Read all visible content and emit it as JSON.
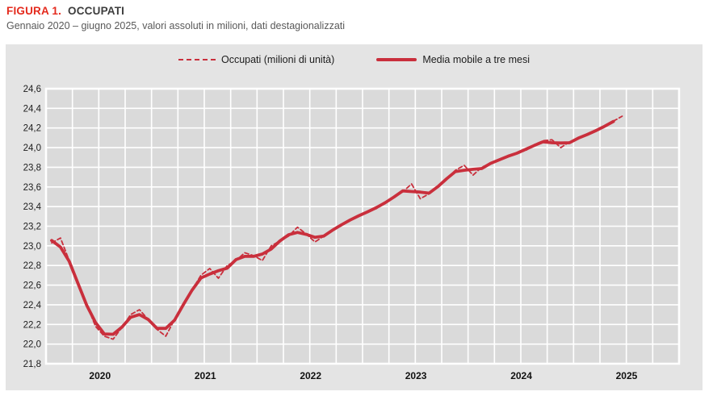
{
  "figure": {
    "label": "FIGURA 1.",
    "title": "OCCUPATI",
    "subtitle": "Gennaio 2020 – giugno 2025, valori assoluti in milioni, dati destagionalizzati"
  },
  "legend": {
    "series1": "Occupati (milioni di unità)",
    "series2": "Media mobile a tre mesi"
  },
  "colors": {
    "series_red": "#c92f3c",
    "title_red": "#e42a1d",
    "panel_bg": "#e4e4e4",
    "plot_bg": "#dadada",
    "grid": "#ffffff",
    "tick_text": "#1c1c1c"
  },
  "chart_data": {
    "type": "line",
    "title": "FIGURA 1. OCCUPATI",
    "subtitle": "Gennaio 2020 – giugno 2025, valori assoluti in milioni, dati destagionalizzati",
    "x_start_month": "2020-01",
    "x_end_month": "2025-06",
    "x_axis_months_span": 72,
    "x_tick_labels": [
      "2020",
      "2021",
      "2022",
      "2023",
      "2024",
      "2025"
    ],
    "ylim": [
      21.8,
      24.6
    ],
    "y_tick_step": 0.2,
    "y_tick_labels": [
      "24,6",
      "24,4",
      "24,2",
      "24,0",
      "23,8",
      "23,6",
      "23,4",
      "23,2",
      "23,0",
      "22,8",
      "22,6",
      "22,4",
      "22,2",
      "22,0",
      "21,8"
    ],
    "grid": true,
    "legend_position": "top-center",
    "series": [
      {
        "name": "Occupati (milioni di unità)",
        "style": "dashed",
        "unit": "milioni",
        "values": [
          23.03,
          23.08,
          22.85,
          22.6,
          22.4,
          22.18,
          22.08,
          22.05,
          22.17,
          22.3,
          22.35,
          22.25,
          22.15,
          22.08,
          22.25,
          22.4,
          22.55,
          22.7,
          22.77,
          22.67,
          22.8,
          22.85,
          22.93,
          22.9,
          22.85,
          23.0,
          23.05,
          23.1,
          23.19,
          23.12,
          23.04,
          23.1,
          23.16,
          23.22,
          23.26,
          23.31,
          23.35,
          23.38,
          23.44,
          23.5,
          23.55,
          23.63,
          23.48,
          23.53,
          23.6,
          23.68,
          23.77,
          23.82,
          23.72,
          23.8,
          23.84,
          23.88,
          23.91,
          23.95,
          23.97,
          24.03,
          24.07,
          24.08,
          24.0,
          24.06,
          24.09,
          24.14,
          24.17,
          24.21,
          24.27,
          24.32
        ]
      },
      {
        "name": "Media mobile a tre mesi",
        "style": "solid",
        "unit": "milioni",
        "values": [
          23.055,
          22.987,
          22.843,
          22.617,
          22.393,
          22.22,
          22.103,
          22.1,
          22.173,
          22.273,
          22.3,
          22.25,
          22.16,
          22.16,
          22.243,
          22.4,
          22.55,
          22.673,
          22.713,
          22.747,
          22.773,
          22.86,
          22.893,
          22.893,
          22.917,
          22.967,
          23.05,
          23.113,
          23.137,
          23.117,
          23.087,
          23.1,
          23.16,
          23.213,
          23.263,
          23.307,
          23.347,
          23.39,
          23.44,
          23.497,
          23.56,
          23.553,
          23.547,
          23.537,
          23.603,
          23.683,
          23.757,
          23.77,
          23.78,
          23.787,
          23.84,
          23.877,
          23.913,
          23.943,
          23.983,
          24.023,
          24.06,
          24.05,
          24.047,
          24.05,
          24.097,
          24.133,
          24.173,
          24.217,
          24.267
        ]
      }
    ]
  }
}
